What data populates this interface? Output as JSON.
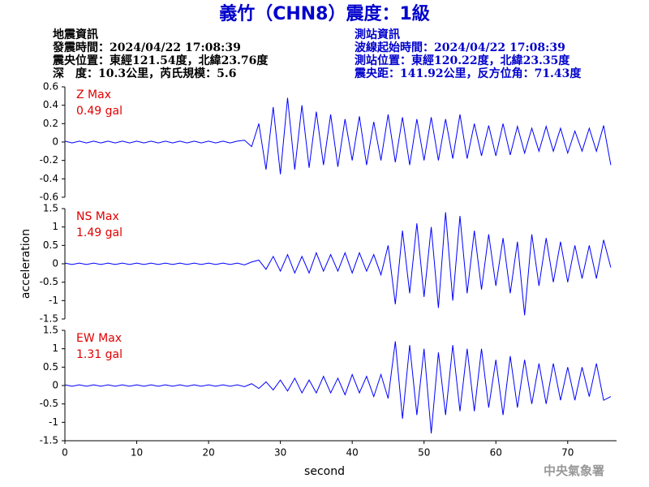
{
  "header": {
    "title": "義竹（CHN8）震度：1級",
    "left": [
      "地震資訊",
      "發震時間：2024/04/22 17:08:39",
      "震央位置：東經121.54度，北緯23.76度",
      "深　度：10.3公里，芮氏規模：5.6"
    ],
    "right": [
      "測站資訊",
      "波線起始時間：2024/04/22 17:08:39",
      "測站位置：東經120.22度，北緯23.35度",
      "震央距：141.92公里，反方位角：71.43度"
    ]
  },
  "footer": "中央氣象署",
  "chart_data": [
    {
      "type": "line",
      "name": "Z Max",
      "annotation": "0.49 gal",
      "color": "#0000ff",
      "xlim": [
        0,
        76.8
      ],
      "ylim": [
        -0.6,
        0.6
      ],
      "yticks": [
        -0.6,
        -0.4,
        -0.2,
        0,
        0.2,
        0.4,
        0.6
      ],
      "x": [
        0,
        1,
        2,
        3,
        4,
        5,
        6,
        7,
        8,
        9,
        10,
        11,
        12,
        13,
        14,
        15,
        16,
        17,
        18,
        19,
        20,
        21,
        22,
        23,
        24,
        25,
        26,
        27,
        28,
        29,
        30,
        31,
        32,
        33,
        34,
        35,
        36,
        37,
        38,
        39,
        40,
        41,
        42,
        43,
        44,
        45,
        46,
        47,
        48,
        49,
        50,
        51,
        52,
        53,
        54,
        55,
        56,
        57,
        58,
        59,
        60,
        61,
        62,
        63,
        64,
        65,
        66,
        67,
        68,
        69,
        70,
        71,
        72,
        73,
        74,
        75,
        76
      ],
      "values": [
        0.01,
        -0.01,
        0.01,
        -0.01,
        0.01,
        -0.01,
        0.01,
        -0.01,
        0.01,
        -0.01,
        0.01,
        -0.01,
        0.01,
        -0.01,
        0.01,
        -0.01,
        0.01,
        -0.01,
        0.01,
        -0.01,
        0.01,
        -0.01,
        0.01,
        -0.01,
        0.01,
        0.02,
        -0.05,
        0.2,
        -0.3,
        0.38,
        -0.35,
        0.48,
        -0.3,
        0.4,
        -0.28,
        0.33,
        -0.25,
        0.3,
        -0.27,
        0.25,
        -0.2,
        0.28,
        -0.25,
        0.22,
        -0.2,
        0.3,
        -0.22,
        0.27,
        -0.25,
        0.25,
        -0.2,
        0.27,
        -0.2,
        0.25,
        -0.18,
        0.3,
        -0.18,
        0.2,
        -0.15,
        0.18,
        -0.15,
        0.2,
        -0.14,
        0.17,
        -0.12,
        0.15,
        -0.1,
        0.17,
        -0.1,
        0.15,
        -0.12,
        0.12,
        -0.1,
        0.15,
        -0.1,
        0.18,
        -0.25
      ]
    },
    {
      "type": "line",
      "name": "NS Max",
      "annotation": "1.49 gal",
      "ylabel": "acceleration",
      "color": "#0000ff",
      "xlim": [
        0,
        76.8
      ],
      "ylim": [
        -1.5,
        1.5
      ],
      "yticks": [
        -1.5,
        -1,
        -0.5,
        0,
        0.5,
        1,
        1.5
      ],
      "x": [
        0,
        1,
        2,
        3,
        4,
        5,
        6,
        7,
        8,
        9,
        10,
        11,
        12,
        13,
        14,
        15,
        16,
        17,
        18,
        19,
        20,
        21,
        22,
        23,
        24,
        25,
        26,
        27,
        28,
        29,
        30,
        31,
        32,
        33,
        34,
        35,
        36,
        37,
        38,
        39,
        40,
        41,
        42,
        43,
        44,
        45,
        46,
        47,
        48,
        49,
        50,
        51,
        52,
        53,
        54,
        55,
        56,
        57,
        58,
        59,
        60,
        61,
        62,
        63,
        64,
        65,
        66,
        67,
        68,
        69,
        70,
        71,
        72,
        73,
        74,
        75,
        76
      ],
      "values": [
        0.02,
        -0.02,
        0.02,
        -0.02,
        0.02,
        -0.02,
        0.02,
        -0.02,
        0.02,
        -0.02,
        0.02,
        -0.02,
        0.02,
        -0.02,
        0.02,
        -0.02,
        0.02,
        -0.02,
        0.02,
        -0.02,
        0.02,
        -0.02,
        0.02,
        -0.02,
        0.02,
        -0.03,
        0.05,
        0.1,
        -0.15,
        0.2,
        -0.2,
        0.25,
        -0.25,
        0.2,
        -0.25,
        0.3,
        -0.2,
        0.25,
        -0.2,
        0.3,
        -0.25,
        0.3,
        -0.2,
        0.25,
        -0.3,
        0.5,
        -1.1,
        0.9,
        -0.8,
        1.1,
        -0.9,
        1.0,
        -1.2,
        1.4,
        -1.0,
        1.3,
        -0.8,
        0.9,
        -0.7,
        0.8,
        -0.6,
        0.7,
        -0.8,
        0.6,
        -1.4,
        0.8,
        -0.6,
        0.7,
        -0.5,
        0.6,
        -0.5,
        0.5,
        -0.4,
        0.5,
        -0.4,
        0.65,
        -0.1
      ]
    },
    {
      "type": "line",
      "name": "EW Max",
      "annotation": "1.31 gal",
      "xlabel": "second",
      "color": "#0000ff",
      "xlim": [
        0,
        76.8
      ],
      "xticks": [
        0,
        10,
        20,
        30,
        40,
        50,
        60,
        70
      ],
      "ylim": [
        -1.5,
        1.5
      ],
      "yticks": [
        -1.5,
        -1,
        -0.5,
        0,
        0.5,
        1,
        1.5
      ],
      "x": [
        0,
        1,
        2,
        3,
        4,
        5,
        6,
        7,
        8,
        9,
        10,
        11,
        12,
        13,
        14,
        15,
        16,
        17,
        18,
        19,
        20,
        21,
        22,
        23,
        24,
        25,
        26,
        27,
        28,
        29,
        30,
        31,
        32,
        33,
        34,
        35,
        36,
        37,
        38,
        39,
        40,
        41,
        42,
        43,
        44,
        45,
        46,
        47,
        48,
        49,
        50,
        51,
        52,
        53,
        54,
        55,
        56,
        57,
        58,
        59,
        60,
        61,
        62,
        63,
        64,
        65,
        66,
        67,
        68,
        69,
        70,
        71,
        72,
        73,
        74,
        75,
        76
      ],
      "values": [
        0.02,
        -0.02,
        0.02,
        -0.02,
        0.02,
        -0.02,
        0.02,
        -0.02,
        0.02,
        -0.02,
        0.02,
        -0.02,
        0.02,
        -0.02,
        0.02,
        -0.02,
        0.02,
        -0.02,
        0.02,
        -0.02,
        0.02,
        -0.02,
        0.02,
        -0.02,
        0.02,
        -0.03,
        0.05,
        -0.08,
        0.1,
        -0.12,
        0.15,
        -0.15,
        0.2,
        -0.2,
        0.15,
        -0.2,
        0.25,
        -0.2,
        0.2,
        -0.25,
        0.3,
        -0.2,
        0.25,
        -0.3,
        0.3,
        -0.35,
        1.2,
        -0.9,
        1.1,
        -0.8,
        1.0,
        -1.3,
        0.9,
        -0.8,
        1.1,
        -0.7,
        1.0,
        -0.7,
        1.0,
        -0.6,
        0.7,
        -0.8,
        0.8,
        -0.6,
        0.7,
        -0.5,
        0.6,
        -0.5,
        0.6,
        -0.4,
        0.5,
        -0.4,
        0.5,
        -0.3,
        0.6,
        -0.4,
        -0.3
      ]
    }
  ]
}
